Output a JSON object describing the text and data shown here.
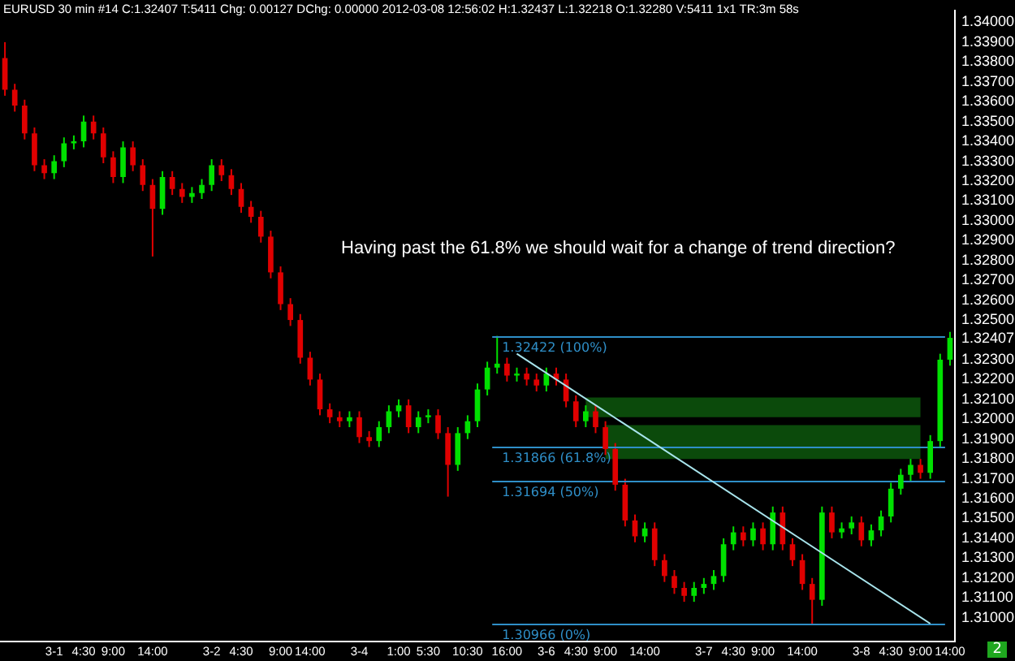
{
  "chart_data": {
    "type": "candlestick",
    "title": "EURUSD  30 min  #14 C:1.32407 T:5411 Chg: 0.00127 DChg: 0.00000 2012-03-08 12:56:02 H:1.32437 L:1.32218 O:1.32280 V:5411 1x1 TR:3m 58s",
    "annotations": [
      "Having past the 61.8% we should wait for a change of trend direction?",
      "2"
    ],
    "categories": [
      null,
      null,
      null,
      null,
      null,
      "3-1",
      null,
      null,
      "4:30",
      null,
      null,
      "9:00",
      null,
      null,
      null,
      "14:00",
      null,
      null,
      null,
      null,
      null,
      "3-2",
      null,
      null,
      "4:30",
      null,
      null,
      null,
      "9:00",
      null,
      null,
      "14:00",
      null,
      null,
      null,
      null,
      "3-4",
      null,
      null,
      null,
      "1:00",
      null,
      null,
      "5:30",
      null,
      null,
      null,
      "10:30",
      null,
      null,
      null,
      "16:00",
      null,
      null,
      null,
      "3-6",
      null,
      null,
      "4:30",
      null,
      null,
      "9:00",
      null,
      null,
      null,
      "14:00",
      null,
      null,
      null,
      null,
      null,
      "3-7",
      null,
      null,
      "4:30",
      null,
      null,
      "9:00",
      null,
      null,
      null,
      "14:00",
      null,
      null,
      null,
      null,
      null,
      "3-8",
      null,
      null,
      "4:30",
      null,
      null,
      "9:00",
      null,
      null,
      "14:00"
    ],
    "ohlc": [
      [
        1.3382,
        1.339,
        1.3363,
        1.3366
      ],
      [
        1.3366,
        1.3369,
        1.3355,
        1.3358
      ],
      [
        1.3358,
        1.3361,
        1.3341,
        1.3344
      ],
      [
        1.3344,
        1.3347,
        1.3325,
        1.3328
      ],
      [
        1.3328,
        1.3331,
        1.3321,
        1.3324
      ],
      [
        1.3324,
        1.3333,
        1.3321,
        1.333
      ],
      [
        1.333,
        1.3342,
        1.3327,
        1.3339
      ],
      [
        1.3339,
        1.3343,
        1.3336,
        1.334
      ],
      [
        1.334,
        1.3353,
        1.3337,
        1.335
      ],
      [
        1.335,
        1.3353,
        1.3341,
        1.3344
      ],
      [
        1.3344,
        1.3347,
        1.3329,
        1.3332
      ],
      [
        1.3332,
        1.3335,
        1.3319,
        1.3322
      ],
      [
        1.3322,
        1.334,
        1.3319,
        1.3337
      ],
      [
        1.3337,
        1.334,
        1.3325,
        1.3328
      ],
      [
        1.3328,
        1.3331,
        1.3315,
        1.3318
      ],
      [
        1.3318,
        1.3321,
        1.3282,
        1.3306
      ],
      [
        1.3306,
        1.3325,
        1.3303,
        1.3322
      ],
      [
        1.3322,
        1.3325,
        1.3313,
        1.3316
      ],
      [
        1.3316,
        1.3319,
        1.3309,
        1.3312
      ],
      [
        1.3312,
        1.3317,
        1.3309,
        1.3314
      ],
      [
        1.3314,
        1.3321,
        1.3311,
        1.3318
      ],
      [
        1.3318,
        1.3331,
        1.3315,
        1.3328
      ],
      [
        1.3328,
        1.3331,
        1.332,
        1.3323
      ],
      [
        1.3323,
        1.3326,
        1.3313,
        1.3316
      ],
      [
        1.3316,
        1.3319,
        1.3304,
        1.3307
      ],
      [
        1.3307,
        1.331,
        1.3299,
        1.3302
      ],
      [
        1.3302,
        1.3305,
        1.3289,
        1.3292
      ],
      [
        1.3292,
        1.3295,
        1.3271,
        1.3274
      ],
      [
        1.3274,
        1.3277,
        1.3255,
        1.3258
      ],
      [
        1.3258,
        1.3261,
        1.3247,
        1.325
      ],
      [
        1.325,
        1.3253,
        1.3228,
        1.3231
      ],
      [
        1.3231,
        1.3234,
        1.3217,
        1.322
      ],
      [
        1.322,
        1.3223,
        1.3202,
        1.3205
      ],
      [
        1.3205,
        1.3208,
        1.3198,
        1.3201
      ],
      [
        1.3201,
        1.3204,
        1.3196,
        1.3199
      ],
      [
        1.3199,
        1.3204,
        1.3196,
        1.3201
      ],
      [
        1.3201,
        1.3204,
        1.3188,
        1.3191
      ],
      [
        1.3191,
        1.3194,
        1.3186,
        1.3189
      ],
      [
        1.3189,
        1.3199,
        1.3186,
        1.3196
      ],
      [
        1.3196,
        1.3207,
        1.3193,
        1.3204
      ],
      [
        1.3204,
        1.321,
        1.3201,
        1.3207
      ],
      [
        1.3207,
        1.321,
        1.3193,
        1.3196
      ],
      [
        1.3196,
        1.3204,
        1.3193,
        1.3201
      ],
      [
        1.3201,
        1.3205,
        1.3198,
        1.3202
      ],
      [
        1.3202,
        1.3205,
        1.319,
        1.3193
      ],
      [
        1.3193,
        1.3196,
        1.3161,
        1.3177
      ],
      [
        1.3177,
        1.3196,
        1.3174,
        1.3193
      ],
      [
        1.3193,
        1.3202,
        1.319,
        1.3199
      ],
      [
        1.3199,
        1.3218,
        1.3196,
        1.3215
      ],
      [
        1.3215,
        1.3229,
        1.3212,
        1.3226
      ],
      [
        1.3226,
        1.3242,
        1.3223,
        1.3228
      ],
      [
        1.3228,
        1.3231,
        1.3219,
        1.3222
      ],
      [
        1.3222,
        1.3226,
        1.3219,
        1.3223
      ],
      [
        1.3223,
        1.3226,
        1.3217,
        1.322
      ],
      [
        1.322,
        1.3223,
        1.3214,
        1.3217
      ],
      [
        1.3217,
        1.3226,
        1.3214,
        1.3223
      ],
      [
        1.3223,
        1.3226,
        1.3217,
        1.322
      ],
      [
        1.322,
        1.3223,
        1.3206,
        1.3209
      ],
      [
        1.3209,
        1.3212,
        1.3196,
        1.3199
      ],
      [
        1.3199,
        1.3207,
        1.3196,
        1.3204
      ],
      [
        1.3204,
        1.3207,
        1.3193,
        1.3196
      ],
      [
        1.3196,
        1.3199,
        1.3182,
        1.3185
      ],
      [
        1.3185,
        1.3188,
        1.3164,
        1.3167
      ],
      [
        1.3167,
        1.317,
        1.3146,
        1.3149
      ],
      [
        1.3149,
        1.3152,
        1.3138,
        1.3141
      ],
      [
        1.3141,
        1.3148,
        1.3138,
        1.3145
      ],
      [
        1.3145,
        1.3148,
        1.3126,
        1.3129
      ],
      [
        1.3129,
        1.3132,
        1.3118,
        1.3121
      ],
      [
        1.3121,
        1.3124,
        1.3112,
        1.3115
      ],
      [
        1.3115,
        1.3118,
        1.3108,
        1.3111
      ],
      [
        1.3111,
        1.3118,
        1.3108,
        1.3115
      ],
      [
        1.3115,
        1.312,
        1.3112,
        1.3117
      ],
      [
        1.3117,
        1.3124,
        1.3114,
        1.3121
      ],
      [
        1.3121,
        1.314,
        1.3118,
        1.3137
      ],
      [
        1.3137,
        1.3146,
        1.3134,
        1.3143
      ],
      [
        1.3143,
        1.3146,
        1.3136,
        1.3139
      ],
      [
        1.3139,
        1.3148,
        1.3136,
        1.3145
      ],
      [
        1.3145,
        1.3148,
        1.3134,
        1.3137
      ],
      [
        1.3137,
        1.3156,
        1.3134,
        1.3153
      ],
      [
        1.3153,
        1.3156,
        1.3134,
        1.3137
      ],
      [
        1.3137,
        1.314,
        1.3126,
        1.3129
      ],
      [
        1.3129,
        1.3132,
        1.3114,
        1.3117
      ],
      [
        1.3117,
        1.312,
        1.3097,
        1.3109
      ],
      [
        1.3109,
        1.3156,
        1.3106,
        1.3153
      ],
      [
        1.3153,
        1.3156,
        1.314,
        1.3143
      ],
      [
        1.3143,
        1.3148,
        1.314,
        1.3145
      ],
      [
        1.3145,
        1.3151,
        1.3142,
        1.3148
      ],
      [
        1.3148,
        1.3151,
        1.3136,
        1.3139
      ],
      [
        1.3139,
        1.3147,
        1.3136,
        1.3144
      ],
      [
        1.3144,
        1.3154,
        1.3141,
        1.3151
      ],
      [
        1.3151,
        1.3168,
        1.3148,
        1.3165
      ],
      [
        1.3165,
        1.3175,
        1.3162,
        1.3172
      ],
      [
        1.3172,
        1.318,
        1.3169,
        1.3177
      ],
      [
        1.3177,
        1.318,
        1.317,
        1.3173
      ],
      [
        1.3173,
        1.3192,
        1.317,
        1.3189
      ],
      [
        1.3189,
        1.3233,
        1.3186,
        1.323
      ],
      [
        1.323,
        1.3244,
        1.3227,
        1.3241
      ]
    ],
    "series": [
      {
        "type": "line",
        "color": "#a8e4ec",
        "values": [
          null,
          null,
          null,
          null,
          null,
          null,
          null,
          null,
          null,
          null,
          null,
          null,
          null,
          null,
          null,
          null,
          null,
          null,
          null,
          null,
          null,
          null,
          null,
          null,
          null,
          null,
          null,
          null,
          null,
          null,
          null,
          null,
          null,
          null,
          null,
          null,
          null,
          null,
          null,
          null,
          null,
          null,
          null,
          null,
          null,
          null,
          null,
          null,
          null,
          null,
          null,
          null,
          1.3233,
          null,
          null,
          null,
          null,
          null,
          null,
          null,
          null,
          null,
          null,
          null,
          null,
          null,
          null,
          null,
          null,
          null,
          null,
          null,
          null,
          null,
          null,
          null,
          null,
          null,
          null,
          null,
          null,
          null,
          null,
          null,
          null,
          null,
          null,
          null,
          null,
          null,
          null,
          null,
          null,
          null,
          1.3097,
          null,
          null
        ]
      }
    ],
    "ylim": [
      1.3088,
      1.3406
    ],
    "yticks": [
      {
        "value": 1.31,
        "label": "1.31000"
      },
      {
        "value": 1.311,
        "label": "1.31100"
      },
      {
        "value": 1.312,
        "label": "1.31200"
      },
      {
        "value": 1.313,
        "label": "1.31300"
      },
      {
        "value": 1.314,
        "label": "1.31400"
      },
      {
        "value": 1.315,
        "label": "1.31500"
      },
      {
        "value": 1.316,
        "label": "1.31600"
      },
      {
        "value": 1.317,
        "label": "1.31700"
      },
      {
        "value": 1.318,
        "label": "1.31800"
      },
      {
        "value": 1.319,
        "label": "1.31900"
      },
      {
        "value": 1.32,
        "label": "1.32000"
      },
      {
        "value": 1.321,
        "label": "1.32100"
      },
      {
        "value": 1.322,
        "label": "1.32200"
      },
      {
        "value": 1.323,
        "label": "1.32300"
      },
      {
        "value": 1.32407,
        "label": "1.32407"
      },
      {
        "value": 1.325,
        "label": "1.32500"
      },
      {
        "value": 1.326,
        "label": "1.32600"
      },
      {
        "value": 1.327,
        "label": "1.32700"
      },
      {
        "value": 1.328,
        "label": "1.32800"
      },
      {
        "value": 1.329,
        "label": "1.32900"
      },
      {
        "value": 1.33,
        "label": "1.33000"
      },
      {
        "value": 1.331,
        "label": "1.33100"
      },
      {
        "value": 1.332,
        "label": "1.33200"
      },
      {
        "value": 1.333,
        "label": "1.33300"
      },
      {
        "value": 1.334,
        "label": "1.33400"
      },
      {
        "value": 1.335,
        "label": "1.33500"
      },
      {
        "value": 1.336,
        "label": "1.33600"
      },
      {
        "value": 1.337,
        "label": "1.33700"
      },
      {
        "value": 1.338,
        "label": "1.33800"
      },
      {
        "value": 1.339,
        "label": "1.33900"
      },
      {
        "value": 1.34,
        "label": "1.34000"
      }
    ],
    "ref_lines": [
      {
        "axis": "y",
        "value": 1.32422,
        "label": "1.32422 (100%)",
        "color": "#2f8fc8"
      },
      {
        "axis": "y",
        "value": 1.31866,
        "label": "1.31866 (61.8%)",
        "color": "#2f8fc8"
      },
      {
        "axis": "y",
        "value": 1.31694,
        "label": "1.31694 (50%)",
        "color": "#2f8fc8"
      },
      {
        "axis": "y",
        "value": 1.30966,
        "label": "1.30966 (0%)",
        "color": "#2f8fc8"
      }
    ],
    "bands": [
      {
        "axis": "y",
        "from": 1.3201,
        "to": 1.3211,
        "color": "#0b4a0b"
      },
      {
        "axis": "y",
        "from": 1.318,
        "to": 1.3197,
        "color": "#0b4a0b"
      }
    ]
  }
}
